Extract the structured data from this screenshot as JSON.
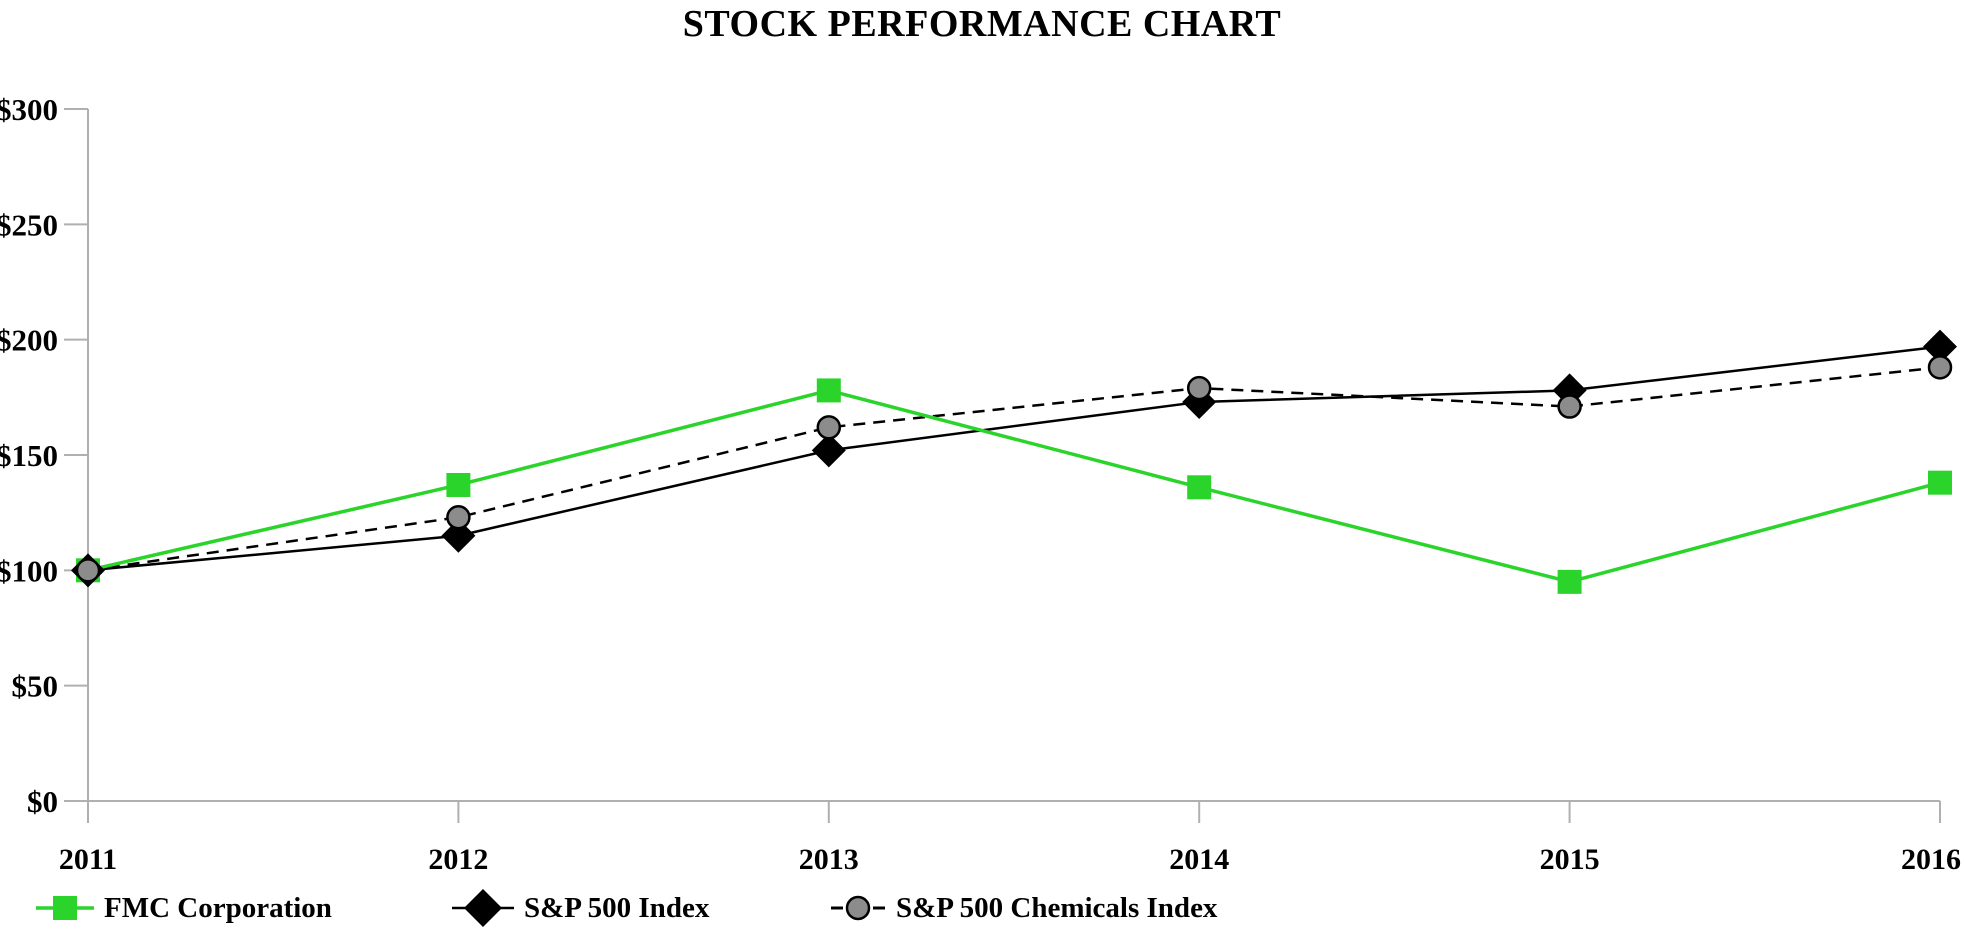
{
  "title": "STOCK PERFORMANCE CHART",
  "colors": {
    "fmc_green": "#2BD42B",
    "sp500_black": "#000000",
    "chemicals_marker_gray": "#8C8C8C",
    "axis_gray": "#B0B0B0",
    "text_black": "#000000"
  },
  "chart_data": {
    "type": "line",
    "x": [
      2011,
      2012,
      2013,
      2014,
      2015,
      2016
    ],
    "x_tick_labels": [
      "2011",
      "2012",
      "2013",
      "2014",
      "2015",
      "2016"
    ],
    "y_ticks": [
      0,
      50,
      100,
      150,
      200,
      250,
      300
    ],
    "y_tick_labels": [
      "$0",
      "$50",
      "$100",
      "$150",
      "$200",
      "$250",
      "$300"
    ],
    "ylim": [
      0,
      300
    ],
    "grid": false,
    "legend_position": "bottom",
    "title": "STOCK PERFORMANCE CHART",
    "xlabel": "",
    "ylabel": "",
    "series": [
      {
        "name": "FMC Corporation",
        "marker": "square",
        "marker_icon": "green-square-icon",
        "line_style": "solid",
        "color": "#2BD42B",
        "values": [
          100,
          137,
          178,
          136,
          95,
          138
        ]
      },
      {
        "name": "S&P 500 Index",
        "marker": "diamond",
        "marker_icon": "black-diamond-icon",
        "line_style": "solid",
        "color": "#000000",
        "values": [
          100,
          115,
          152,
          173,
          178,
          197
        ]
      },
      {
        "name": "S&P 500 Chemicals Index",
        "marker": "circle",
        "marker_icon": "gray-circle-icon",
        "line_style": "dashed",
        "color": "#000000",
        "marker_fill": "#8C8C8C",
        "values": [
          100,
          123,
          162,
          179,
          171,
          188
        ]
      }
    ]
  }
}
